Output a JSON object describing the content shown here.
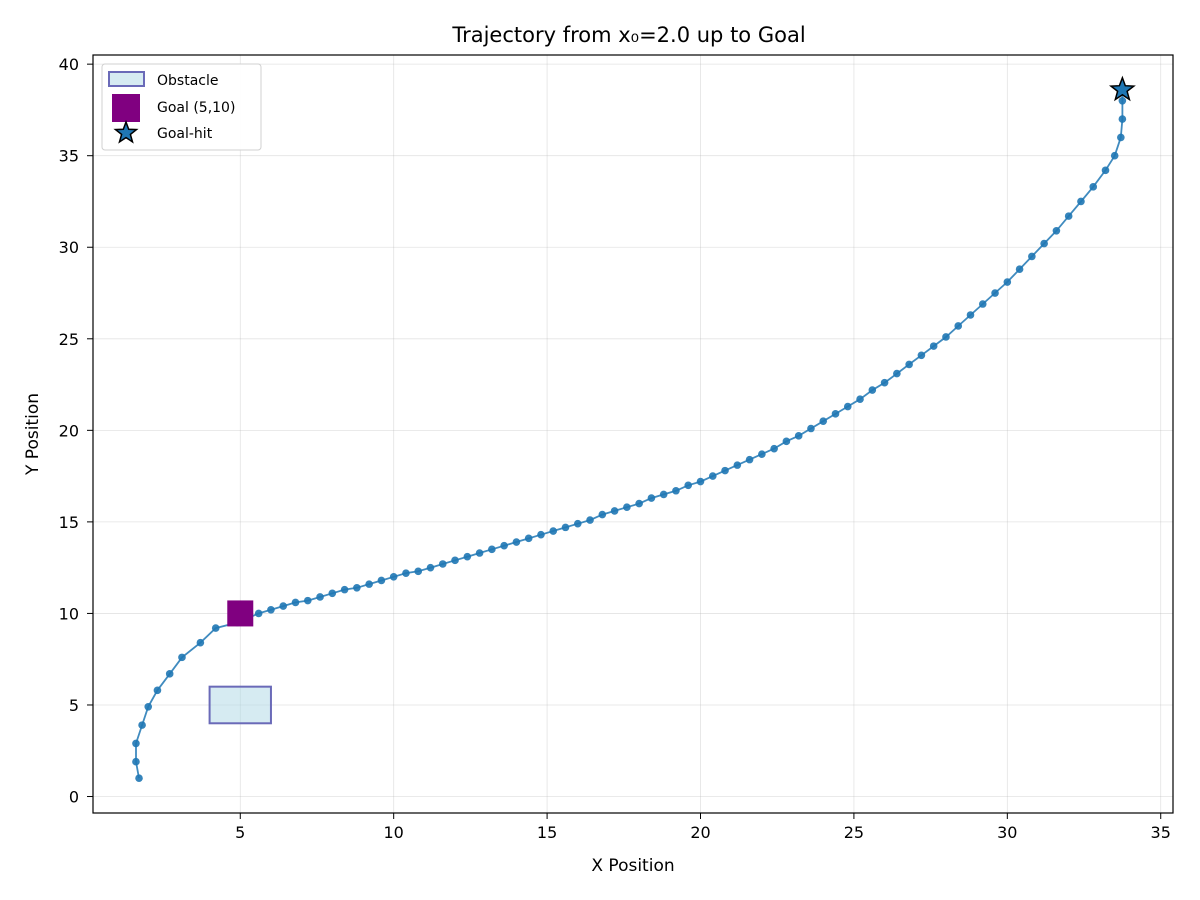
{
  "chart_data": {
    "type": "scatter",
    "title": "Trajectory from x₀=2.0 up to Goal",
    "xlabel": "X Position",
    "ylabel": "Y Position",
    "xlim": [
      0.2,
      35.4
    ],
    "ylim": [
      -0.9,
      40.5
    ],
    "xticks": [
      5,
      10,
      15,
      20,
      25,
      30,
      35
    ],
    "yticks": [
      0,
      5,
      10,
      15,
      20,
      25,
      30,
      35,
      40
    ],
    "grid": true,
    "legend_position": "top-left",
    "legend": [
      {
        "label": "Obstacle",
        "marker": "rect-patch"
      },
      {
        "label": "Goal (5,10)",
        "marker": "square"
      },
      {
        "label": "Goal-hit",
        "marker": "star"
      }
    ],
    "colors": {
      "trajectory": "#1f77b4",
      "goal": "#800080",
      "obstacle_fill": "#add8e6",
      "obstacle_edge": "#6a6ab8",
      "star": "#1f77b4"
    },
    "obstacle": {
      "x_range": [
        4,
        6
      ],
      "y_range": [
        4,
        6
      ]
    },
    "goal": {
      "x": 5,
      "y": 10
    },
    "goal_hit": {
      "x": 33.75,
      "y": 38.6
    },
    "series": [
      {
        "name": "trajectory",
        "points": [
          [
            1.7,
            1.0
          ],
          [
            1.6,
            1.9
          ],
          [
            1.6,
            2.9
          ],
          [
            1.8,
            3.9
          ],
          [
            2.0,
            4.9
          ],
          [
            2.3,
            5.8
          ],
          [
            2.7,
            6.7
          ],
          [
            3.1,
            7.6
          ],
          [
            3.7,
            8.4
          ],
          [
            4.2,
            9.2
          ],
          [
            4.9,
            9.5
          ],
          [
            5.6,
            10.0
          ],
          [
            6.0,
            10.2
          ],
          [
            6.4,
            10.4
          ],
          [
            6.8,
            10.6
          ],
          [
            7.2,
            10.7
          ],
          [
            7.6,
            10.9
          ],
          [
            8.0,
            11.1
          ],
          [
            8.4,
            11.3
          ],
          [
            8.8,
            11.4
          ],
          [
            9.2,
            11.6
          ],
          [
            9.6,
            11.8
          ],
          [
            10.0,
            12.0
          ],
          [
            10.4,
            12.2
          ],
          [
            10.8,
            12.3
          ],
          [
            11.2,
            12.5
          ],
          [
            11.6,
            12.7
          ],
          [
            12.0,
            12.9
          ],
          [
            12.4,
            13.1
          ],
          [
            12.8,
            13.3
          ],
          [
            13.2,
            13.5
          ],
          [
            13.6,
            13.7
          ],
          [
            14.0,
            13.9
          ],
          [
            14.4,
            14.1
          ],
          [
            14.8,
            14.3
          ],
          [
            15.2,
            14.5
          ],
          [
            15.6,
            14.7
          ],
          [
            16.0,
            14.9
          ],
          [
            16.4,
            15.1
          ],
          [
            16.8,
            15.4
          ],
          [
            17.2,
            15.6
          ],
          [
            17.6,
            15.8
          ],
          [
            18.0,
            16.0
          ],
          [
            18.4,
            16.3
          ],
          [
            18.8,
            16.5
          ],
          [
            19.2,
            16.7
          ],
          [
            19.6,
            17.0
          ],
          [
            20.0,
            17.2
          ],
          [
            20.4,
            17.5
          ],
          [
            20.8,
            17.8
          ],
          [
            21.2,
            18.1
          ],
          [
            21.6,
            18.4
          ],
          [
            22.0,
            18.7
          ],
          [
            22.4,
            19.0
          ],
          [
            22.8,
            19.4
          ],
          [
            23.2,
            19.7
          ],
          [
            23.6,
            20.1
          ],
          [
            24.0,
            20.5
          ],
          [
            24.4,
            20.9
          ],
          [
            24.8,
            21.3
          ],
          [
            25.2,
            21.7
          ],
          [
            25.6,
            22.2
          ],
          [
            26.0,
            22.6
          ],
          [
            26.4,
            23.1
          ],
          [
            26.8,
            23.6
          ],
          [
            27.2,
            24.1
          ],
          [
            27.6,
            24.6
          ],
          [
            28.0,
            25.1
          ],
          [
            28.4,
            25.7
          ],
          [
            28.8,
            26.3
          ],
          [
            29.2,
            26.9
          ],
          [
            29.6,
            27.5
          ],
          [
            30.0,
            28.1
          ],
          [
            30.4,
            28.8
          ],
          [
            30.8,
            29.5
          ],
          [
            31.2,
            30.2
          ],
          [
            31.6,
            30.9
          ],
          [
            32.0,
            31.7
          ],
          [
            32.4,
            32.5
          ],
          [
            32.8,
            33.3
          ],
          [
            33.2,
            34.2
          ],
          [
            33.5,
            35.0
          ],
          [
            33.7,
            36.0
          ],
          [
            33.75,
            37.0
          ],
          [
            33.75,
            38.0
          ],
          [
            33.75,
            38.6
          ]
        ]
      }
    ]
  }
}
